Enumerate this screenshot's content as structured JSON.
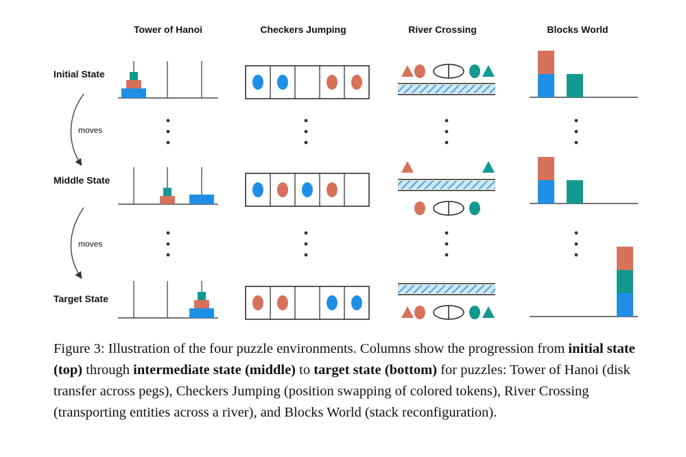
{
  "columns": [
    "Tower of Hanoi",
    "Checkers Jumping",
    "River Crossing",
    "Blocks World"
  ],
  "rows": [
    "Initial State",
    "Middle State",
    "Target State"
  ],
  "arrow_label": "moves",
  "colors": {
    "orange": "#d6725a",
    "teal": "#13998f",
    "blue": "#1f8fe6",
    "river": "#4aa5d8",
    "line": "#444444"
  },
  "hanoi": {
    "initial": [
      [
        "large-blue",
        "medium-orange",
        "small-teal"
      ],
      [],
      []
    ],
    "middle": [
      [],
      [
        "medium-orange",
        "small-teal"
      ],
      [
        "large-blue"
      ]
    ],
    "target": [
      [],
      [],
      [
        "large-blue",
        "medium-orange",
        "small-teal"
      ]
    ]
  },
  "checkers": {
    "initial": [
      "blue",
      "blue",
      "",
      "orange",
      "orange"
    ],
    "middle": [
      "blue",
      "orange",
      "blue",
      "orange",
      ""
    ],
    "target": [
      "orange",
      "orange",
      "",
      "blue",
      "blue"
    ]
  },
  "river": {
    "initial": {
      "above": [
        "triangle-orange",
        "circle-orange",
        "boat",
        "circle-teal",
        "triangle-teal"
      ],
      "below": []
    },
    "middle": {
      "above": [
        "triangle-orange",
        "triangle-teal"
      ],
      "below": [
        "circle-orange",
        "boat",
        "circle-teal"
      ]
    },
    "target": {
      "above": [],
      "below": [
        "triangle-orange",
        "circle-orange",
        "boat",
        "circle-teal",
        "triangle-teal"
      ]
    }
  },
  "blocks": {
    "initial": [
      [
        "blue",
        "orange"
      ],
      [
        "teal"
      ],
      []
    ],
    "middle": [
      [
        "blue",
        "orange"
      ],
      [
        "teal"
      ],
      []
    ],
    "target": [
      [],
      [],
      [
        "blue",
        "teal",
        "orange"
      ]
    ]
  },
  "caption": {
    "label": "Figure 3:",
    "t1": " Illustration of the four puzzle environments. Columns show the progression from ",
    "b1": "initial state (top)",
    "t2": " through ",
    "b2": "intermediate state (middle)",
    "t3": " to ",
    "b3": "target state (bottom)",
    "t4": " for puzzles: Tower of Hanoi (disk transfer across pegs), Checkers Jumping (position swapping of colored tokens), River Crossing (transporting entities across a river), and Blocks World (stack reconfiguration)."
  }
}
